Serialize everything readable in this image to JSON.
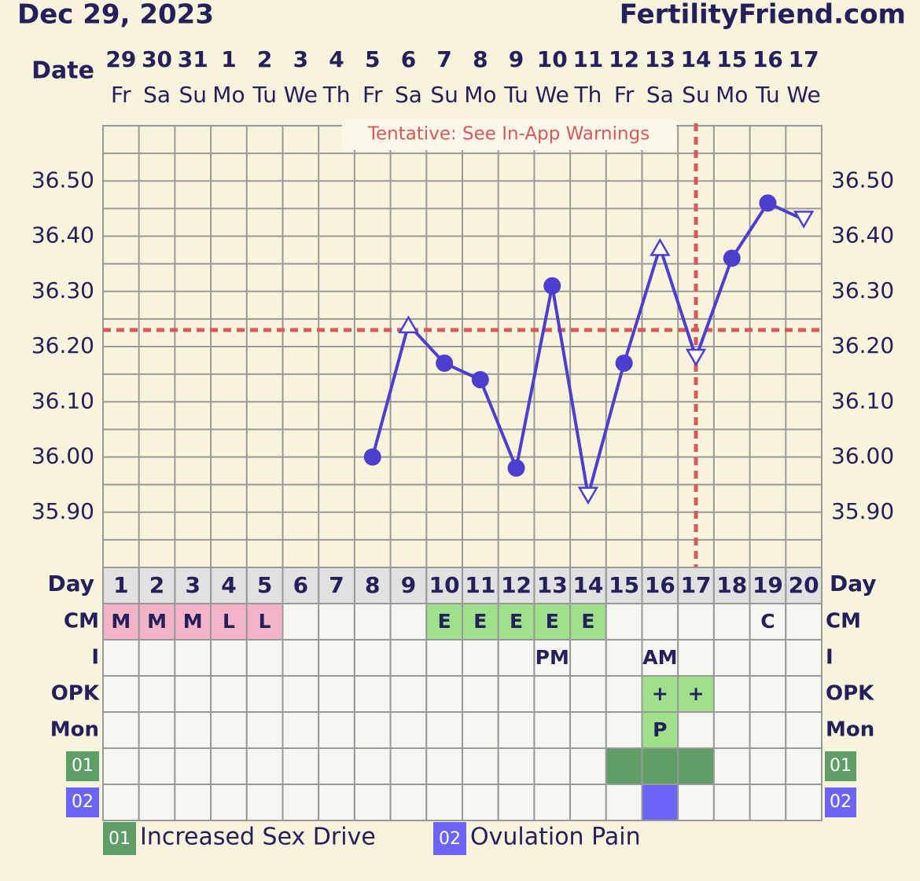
{
  "chart_data": {
    "type": "line",
    "title": "Dec 29, 2023",
    "site": "FertilityFriend.com",
    "date_label": "Date",
    "dates": [
      29,
      30,
      31,
      1,
      2,
      3,
      4,
      5,
      6,
      7,
      8,
      9,
      10,
      11,
      12,
      13,
      14,
      15,
      16,
      17
    ],
    "weekdays": [
      "Fr",
      "Sa",
      "Su",
      "Mo",
      "Tu",
      "We",
      "Th",
      "Fr",
      "Sa",
      "Su",
      "Mo",
      "Tu",
      "We",
      "Th",
      "Fr",
      "Sa",
      "Su",
      "Mo",
      "Tu",
      "We"
    ],
    "day_label": "Day",
    "categories": [
      1,
      2,
      3,
      4,
      5,
      6,
      7,
      8,
      9,
      10,
      11,
      12,
      13,
      14,
      15,
      16,
      17,
      18,
      19,
      20
    ],
    "annotation": "Tentative: See In-App Warnings",
    "series": [
      {
        "color": "#4c3fcf",
        "values": [
          null,
          null,
          null,
          null,
          null,
          null,
          null,
          36.0,
          36.24,
          36.17,
          36.14,
          35.98,
          36.31,
          35.93,
          36.17,
          36.38,
          36.18,
          36.36,
          36.46,
          36.43
        ],
        "markers": [
          null,
          null,
          null,
          null,
          null,
          null,
          null,
          "dot",
          "up",
          "dot",
          "dot",
          "dot",
          "dot",
          "down",
          "dot",
          "up",
          "down",
          "dot",
          "dot",
          "down"
        ]
      }
    ],
    "ylim": [
      35.8,
      36.6
    ],
    "yticks": [
      {
        "value": 35.9,
        "label": "35.90"
      },
      {
        "value": 36.0,
        "label": "36.00"
      },
      {
        "value": 36.1,
        "label": "36.10"
      },
      {
        "value": 36.2,
        "label": "36.20"
      },
      {
        "value": 36.3,
        "label": "36.30"
      },
      {
        "value": 36.4,
        "label": "36.40"
      },
      {
        "value": 36.5,
        "label": "36.50"
      }
    ],
    "ygrid": [
      35.85,
      35.9,
      35.95,
      36.0,
      36.05,
      36.1,
      36.15,
      36.2,
      36.25,
      36.3,
      36.35,
      36.4,
      36.45,
      36.5,
      36.55
    ],
    "coverline": 36.23,
    "ovulation_day": 17,
    "marker_color": "#d9585a",
    "rows": [
      {
        "label": "CM",
        "cells": [
          "M",
          "M",
          "M",
          "L",
          "L",
          null,
          null,
          null,
          null,
          "E",
          "E",
          "E",
          "E",
          "E",
          null,
          null,
          null,
          null,
          "C",
          null
        ],
        "fills": [
          "#f2b4c6",
          "#f2b4c6",
          "#f2b4c6",
          "#f2b4c6",
          "#f2b4c6",
          null,
          null,
          null,
          null,
          "#9fe08a",
          "#9fe08a",
          "#9fe08a",
          "#9fe08a",
          "#9fe08a",
          null,
          null,
          null,
          null,
          null,
          null
        ]
      },
      {
        "label": "I",
        "cells": [
          null,
          null,
          null,
          null,
          null,
          null,
          null,
          null,
          null,
          null,
          null,
          null,
          "PM",
          null,
          null,
          "AM",
          null,
          null,
          null,
          null
        ],
        "fills": [
          null,
          null,
          null,
          null,
          null,
          null,
          null,
          null,
          null,
          null,
          null,
          null,
          null,
          null,
          null,
          null,
          null,
          null,
          null,
          null
        ]
      },
      {
        "label": "OPK",
        "cells": [
          null,
          null,
          null,
          null,
          null,
          null,
          null,
          null,
          null,
          null,
          null,
          null,
          null,
          null,
          null,
          "+",
          "+",
          null,
          null,
          null
        ],
        "fills": [
          null,
          null,
          null,
          null,
          null,
          null,
          null,
          null,
          null,
          null,
          null,
          null,
          null,
          null,
          null,
          "#9fe08a",
          "#9fe08a",
          null,
          null,
          null
        ]
      },
      {
        "label": "Mon",
        "cells": [
          null,
          null,
          null,
          null,
          null,
          null,
          null,
          null,
          null,
          null,
          null,
          null,
          null,
          null,
          null,
          "P",
          null,
          null,
          null,
          null
        ],
        "fills": [
          null,
          null,
          null,
          null,
          null,
          null,
          null,
          null,
          null,
          null,
          null,
          null,
          null,
          null,
          null,
          "#9fe08a",
          null,
          null,
          null,
          null
        ]
      },
      {
        "label": "01",
        "badge": "#5f9e67",
        "cells": [
          null,
          null,
          null,
          null,
          null,
          null,
          null,
          null,
          null,
          null,
          null,
          null,
          null,
          null,
          null,
          null,
          null,
          null,
          null,
          null
        ],
        "fills": [
          null,
          null,
          null,
          null,
          null,
          null,
          null,
          null,
          null,
          null,
          null,
          null,
          null,
          null,
          "#5f9e67",
          "#5f9e67",
          "#5f9e67",
          null,
          null,
          null
        ]
      },
      {
        "label": "02",
        "badge": "#6b64f7",
        "cells": [
          null,
          null,
          null,
          null,
          null,
          null,
          null,
          null,
          null,
          null,
          null,
          null,
          null,
          null,
          null,
          null,
          null,
          null,
          null,
          null
        ],
        "fills": [
          null,
          null,
          null,
          null,
          null,
          null,
          null,
          null,
          null,
          null,
          null,
          null,
          null,
          null,
          null,
          "#6b64f7",
          null,
          null,
          null,
          null
        ]
      }
    ],
    "legend": [
      {
        "code": "01",
        "name": "Increased Sex Drive",
        "color": "#5f9e67"
      },
      {
        "code": "02",
        "name": "Ovulation Pain",
        "color": "#6b64f7"
      }
    ]
  }
}
